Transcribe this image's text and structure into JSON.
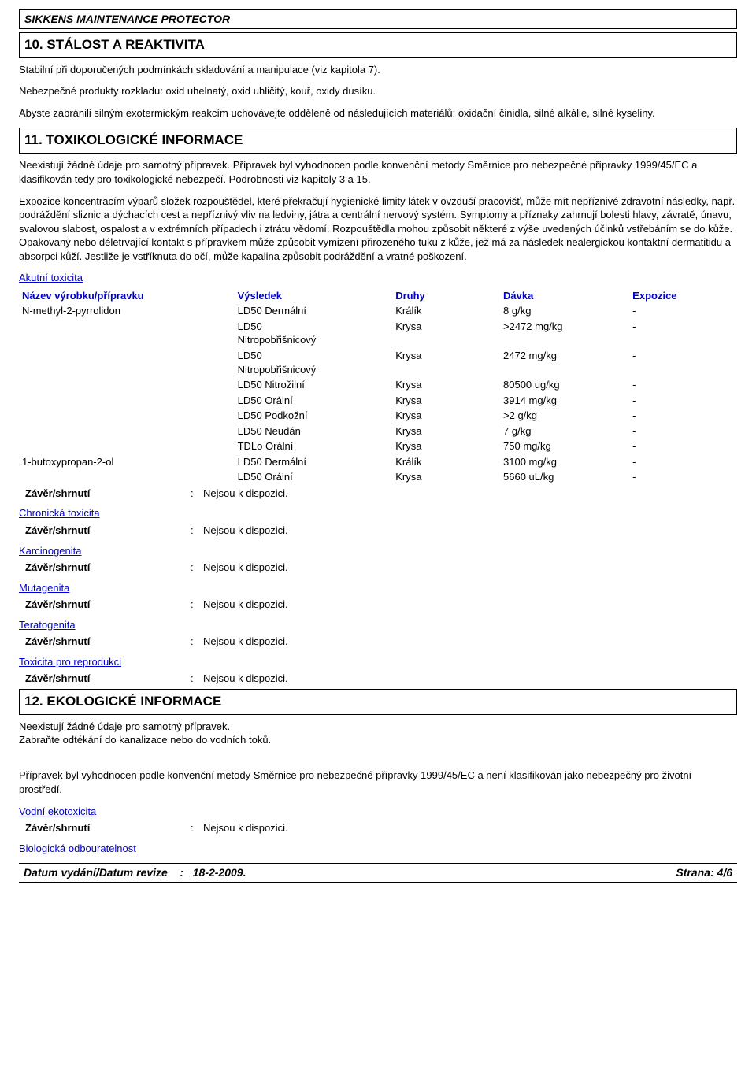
{
  "doc_title": "SIKKENS MAINTENANCE PROTECTOR",
  "sections": {
    "s10_heading": "10. STÁLOST A REAKTIVITA",
    "s10_p1": "Stabilní při doporučených podmínkách skladování a manipulace (viz kapitola 7).",
    "s10_p2": "Nebezpečné produkty rozkladu: oxid uhelnatý, oxid uhličitý, kouř, oxidy dusíku.",
    "s10_p3": "Abyste zabránili silným exotermickým reakcím uchovávejte odděleně od následujících materiálů: oxidační činidla, silné alkálie, silné kyseliny.",
    "s11_heading": "11. TOXIKOLOGICKÉ INFORMACE",
    "s11_p1": "Neexistují žádné údaje pro samotný přípravek. Přípravek byl vyhodnocen podle konvenční metody Směrnice pro nebezpečné přípravky 1999/45/EC a klasifikován tedy pro toxikologické nebezpečí. Podrobnosti viz kapitoly 3 a 15.",
    "s11_p2": "Expozice koncentracím výparů složek rozpouštědel, které překračují hygienické limity látek v ovzduší pracovišť, může mít nepříznivé zdravotní následky, např. podráždění sliznic a dýchacích cest a nepříznivý vliv na ledviny, játra a centrální nervový systém. Symptomy a příznaky zahrnují bolesti hlavy, závratě, únavu, svalovou slabost, ospalost a v extrémních případech i ztrátu vědomí. Rozpouštědla mohou způsobit některé z výše uvedených účinků vstřebáním se do kůže. Opakovaný nebo déletrvající kontakt s přípravkem může způsobit vymizení přirozeného tuku z kůže, jež má za následek nealergickou kontaktní dermatitidu a absorpci kůží. Jestliže je vstříknuta do očí, může kapalina způsobit podráždění a vratné poškození.",
    "s12_heading": "12. EKOLOGICKÉ INFORMACE",
    "s12_p1": "Neexistují žádné údaje pro samotný přípravek.",
    "s12_p2": "Zabraňte odtékání do kanalizace nebo do vodních toků.",
    "s12_p3": "Přípravek byl vyhodnocen podle konvenční metody Směrnice pro nebezpečné přípravky 1999/45/EC a není klasifikován jako nebezpečný pro životní prostředí."
  },
  "acute_tox": {
    "heading": "Akutní toxicita",
    "columns": {
      "name": "Název výrobku/přípravku",
      "result": "Výsledek",
      "species": "Druhy",
      "dose": "Dávka",
      "exposure": "Expozice"
    },
    "rows": [
      {
        "name": "N-methyl-2-pyrrolidon",
        "result": "LD50 Dermální",
        "species": "Králík",
        "dose": "8 g/kg",
        "exposure": "-"
      },
      {
        "name": "",
        "result": "LD50 Nitropobřišnicový",
        "species": "Krysa",
        "dose": ">2472 mg/kg",
        "exposure": "-"
      },
      {
        "name": "",
        "result": "LD50 Nitropobřišnicový",
        "species": "Krysa",
        "dose": "2472 mg/kg",
        "exposure": "-"
      },
      {
        "name": "",
        "result": "LD50 Nitrožilní",
        "species": "Krysa",
        "dose": "80500 ug/kg",
        "exposure": "-"
      },
      {
        "name": "",
        "result": "LD50 Orální",
        "species": "Krysa",
        "dose": "3914 mg/kg",
        "exposure": "-"
      },
      {
        "name": "",
        "result": "LD50 Podkožní",
        "species": "Krysa",
        "dose": ">2 g/kg",
        "exposure": "-"
      },
      {
        "name": "",
        "result": "LD50 Neudán",
        "species": "Krysa",
        "dose": "7 g/kg",
        "exposure": "-"
      },
      {
        "name": "",
        "result": "TDLo Orální",
        "species": "Krysa",
        "dose": "750 mg/kg",
        "exposure": "-"
      },
      {
        "name": "1-butoxypropan-2-ol",
        "result": "LD50 Dermální",
        "species": "Králík",
        "dose": "3100 mg/kg",
        "exposure": "-"
      },
      {
        "name": "",
        "result": "LD50 Orální",
        "species": "Krysa",
        "dose": "5660 uL/kg",
        "exposure": "-"
      }
    ]
  },
  "conclusions": {
    "label": "Závěr/shrnutí",
    "value": "Nejsou k dispozici.",
    "sep": ":",
    "headings": {
      "chronic": "Chronická toxicita",
      "carcino": "Karcinogenita",
      "muta": "Mutagenita",
      "terato": "Teratogenita",
      "repro": "Toxicita pro reprodukci",
      "aquatic": "Vodní ekotoxicita",
      "bio": "Biologická odbouratelnost"
    }
  },
  "footer": {
    "left_label": "Datum vydání/Datum revize",
    "left_value": "18-2-2009.",
    "right_label": "Strana:",
    "right_value": "4/6",
    "sep": ":"
  },
  "colors": {
    "text": "#000000",
    "link": "#0000cc",
    "border": "#000000",
    "background": "#ffffff"
  },
  "fonts": {
    "body_family": "Arial",
    "body_size_pt": 10,
    "heading_size_pt": 13
  }
}
